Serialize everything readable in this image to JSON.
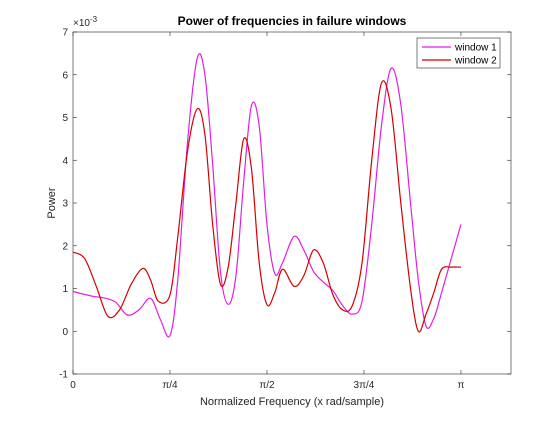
{
  "chart_data": {
    "type": "line",
    "title": "Power of frequencies in failure windows",
    "xlabel": "Normalized Frequency (x rad/sample)",
    "ylabel": "Power",
    "y_exponent_label": "×10",
    "y_exponent": "-3",
    "xlim": [
      0,
      1.129
    ],
    "ylim": [
      -1,
      7
    ],
    "x_unit": "π rad/sample",
    "xticks": [
      {
        "value": 0,
        "label": "0"
      },
      {
        "value": 0.25,
        "label": "π/4"
      },
      {
        "value": 0.5,
        "label": "π/2"
      },
      {
        "value": 0.75,
        "label": "3π/4"
      },
      {
        "value": 1.0,
        "label": "π"
      }
    ],
    "yticks": [
      {
        "value": -1,
        "label": "-1"
      },
      {
        "value": 0,
        "label": "0"
      },
      {
        "value": 1,
        "label": "1"
      },
      {
        "value": 2,
        "label": "2"
      },
      {
        "value": 3,
        "label": "3"
      },
      {
        "value": 4,
        "label": "4"
      },
      {
        "value": 5,
        "label": "5"
      },
      {
        "value": 6,
        "label": "6"
      },
      {
        "value": 7,
        "label": "7"
      }
    ],
    "legend_position": "top-right",
    "grid": false,
    "series": [
      {
        "name": "window 1",
        "color": "#e020e0",
        "x": [
          0,
          0.05,
          0.08,
          0.11,
          0.14,
          0.17,
          0.2,
          0.225,
          0.25,
          0.27,
          0.295,
          0.32,
          0.34,
          0.36,
          0.38,
          0.4,
          0.42,
          0.44,
          0.46,
          0.48,
          0.5,
          0.52,
          0.54,
          0.57,
          0.595,
          0.62,
          0.645,
          0.67,
          0.695,
          0.72,
          0.745,
          0.77,
          0.795,
          0.82,
          0.845,
          0.87,
          0.89,
          0.91,
          0.93,
          0.95,
          0.975,
          1.0
        ],
        "values": [
          0.93,
          0.82,
          0.78,
          0.68,
          0.38,
          0.5,
          0.77,
          0.28,
          -0.1,
          1.2,
          4.4,
          6.38,
          6.0,
          3.9,
          1.4,
          0.63,
          1.3,
          3.5,
          5.28,
          4.8,
          2.5,
          1.35,
          1.6,
          2.22,
          1.9,
          1.4,
          1.15,
          0.95,
          0.6,
          0.4,
          0.7,
          2.5,
          4.8,
          6.15,
          5.3,
          3.0,
          1.2,
          0.12,
          0.3,
          0.9,
          1.7,
          2.5
        ]
      },
      {
        "name": "window 2",
        "color": "#d40000",
        "x": [
          0,
          0.03,
          0.06,
          0.09,
          0.12,
          0.15,
          0.18,
          0.2,
          0.22,
          0.25,
          0.27,
          0.295,
          0.32,
          0.34,
          0.36,
          0.38,
          0.4,
          0.42,
          0.44,
          0.46,
          0.48,
          0.5,
          0.52,
          0.54,
          0.57,
          0.595,
          0.62,
          0.645,
          0.67,
          0.695,
          0.72,
          0.745,
          0.77,
          0.795,
          0.82,
          0.845,
          0.87,
          0.89,
          0.91,
          0.93,
          0.95,
          0.975,
          1.0
        ],
        "values": [
          1.85,
          1.7,
          1.05,
          0.35,
          0.5,
          1.1,
          1.47,
          1.2,
          0.7,
          0.85,
          2.2,
          4.2,
          5.2,
          4.6,
          2.5,
          1.1,
          1.5,
          3.0,
          4.5,
          3.8,
          1.6,
          0.62,
          0.9,
          1.45,
          1.05,
          1.3,
          1.9,
          1.6,
          0.85,
          0.5,
          0.6,
          1.6,
          4.0,
          5.8,
          5.2,
          3.0,
          1.0,
          0.0,
          0.4,
          0.9,
          1.45,
          1.5,
          1.5
        ]
      }
    ]
  }
}
